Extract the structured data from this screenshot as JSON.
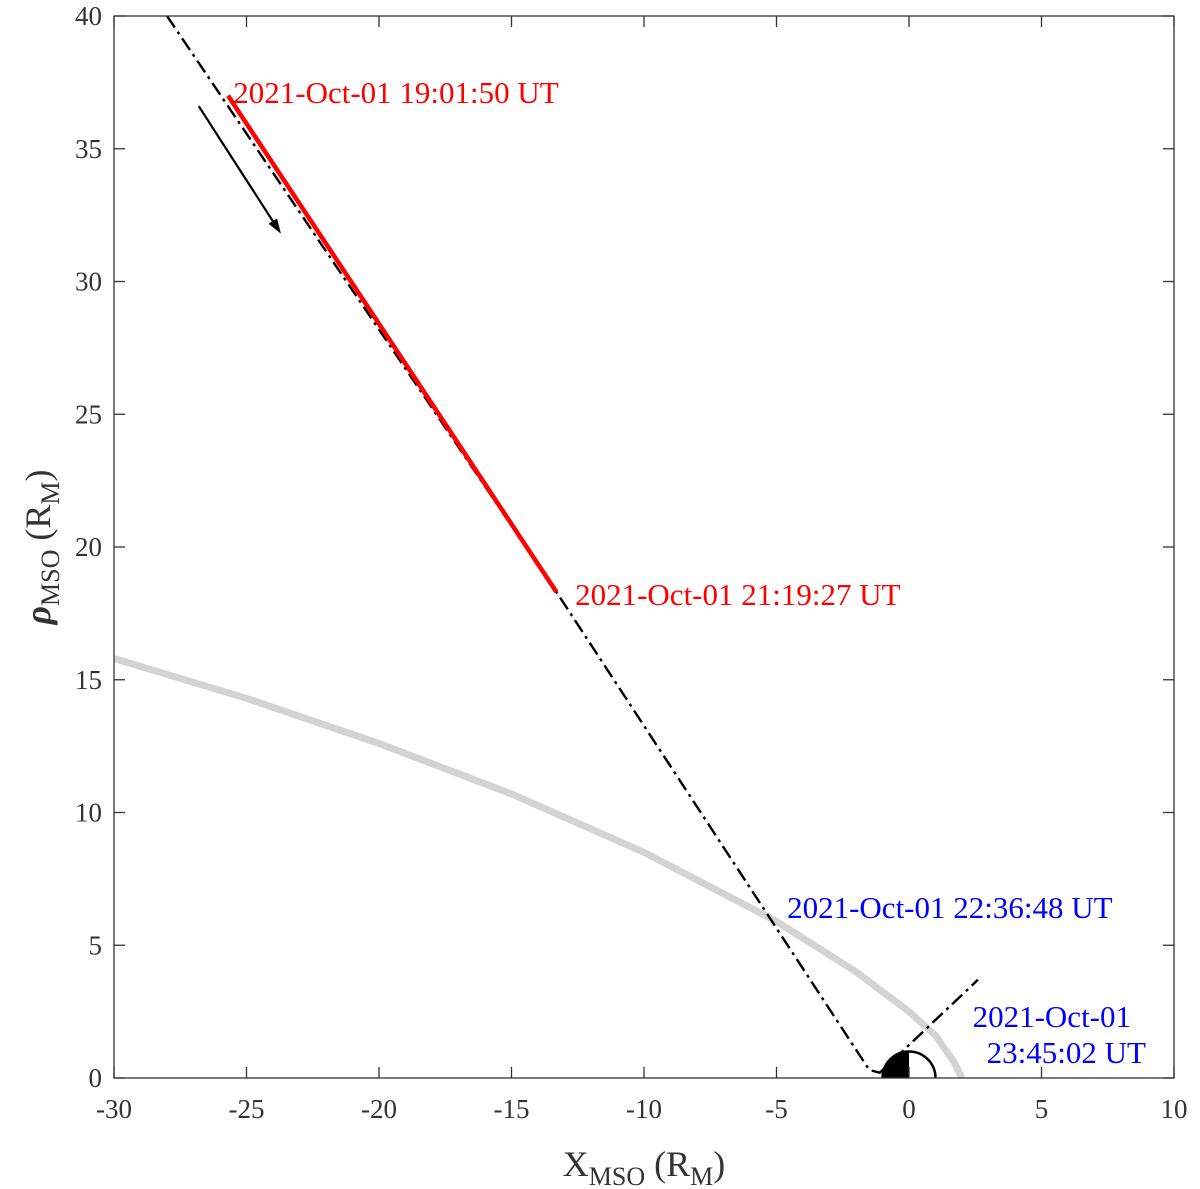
{
  "chart_data": {
    "type": "line",
    "xlabel": {
      "base": "X",
      "sub": "MSO",
      "unit_open": " (R",
      "unit_sub": "M",
      "unit_close": ")"
    },
    "ylabel": {
      "base": "ρ",
      "sub": "MSO",
      "unit_open": " (R",
      "unit_sub": "M",
      "unit_close": ")"
    },
    "xlim": [
      -30,
      10
    ],
    "ylim": [
      0,
      40
    ],
    "xticks": [
      -30,
      -25,
      -20,
      -15,
      -10,
      -5,
      0,
      5,
      10
    ],
    "yticks": [
      0,
      5,
      10,
      15,
      20,
      25,
      30,
      35,
      40
    ],
    "grid": false,
    "colors": {
      "highlight": "#ff0000",
      "trajectory": "#000000",
      "boundary": "#d3d3d3",
      "annotation_blue": "#0000ff",
      "annotation_red": "#ff0000",
      "axis": "#333333"
    },
    "series": [
      {
        "style": "dash-dot",
        "color": "#000000",
        "points": [
          [
            -28.0,
            40.0
          ],
          [
            -13.3,
            18.3
          ],
          [
            -1.5,
            0.3
          ],
          [
            -1.1,
            0.2
          ],
          [
            2.6,
            3.7
          ]
        ]
      },
      {
        "style": "solid",
        "color": "#ff0000",
        "points": [
          [
            -25.7,
            37.0
          ],
          [
            -13.3,
            18.3
          ]
        ]
      },
      {
        "style": "solid",
        "color": "#d3d3d3",
        "points": [
          [
            -30.0,
            15.8
          ],
          [
            -25.0,
            14.3
          ],
          [
            -20.0,
            12.6
          ],
          [
            -15.0,
            10.7
          ],
          [
            -10.0,
            8.5
          ],
          [
            -5.0,
            5.9
          ],
          [
            -2.0,
            4.0
          ],
          [
            0.0,
            2.5
          ],
          [
            1.0,
            1.6
          ],
          [
            1.7,
            0.6
          ],
          [
            2.0,
            0.0
          ]
        ]
      }
    ],
    "direction_arrow": {
      "from": [
        -26.8,
        36.6
      ],
      "to": [
        -23.7,
        31.8
      ]
    },
    "planet": {
      "x": 0,
      "y": 0,
      "radius": 1
    },
    "annotations": [
      {
        "lines": [
          "2021-Oct-01 19:01:50 UT"
        ],
        "color": "#ff0000",
        "x": -25.5,
        "y": 37.1
      },
      {
        "lines": [
          "2021-Oct-01 21:19:27 UT"
        ],
        "color": "#ff0000",
        "x": -12.6,
        "y": 18.2
      },
      {
        "lines": [
          "2021-Oct-01 22:36:48 UT"
        ],
        "color": "#0000ff",
        "x": -4.6,
        "y": 6.4
      },
      {
        "lines": [
          "2021-Oct-01",
          "23:45:02 UT"
        ],
        "color": "#0000ff",
        "x": 2.4,
        "y": 2.3
      }
    ]
  }
}
